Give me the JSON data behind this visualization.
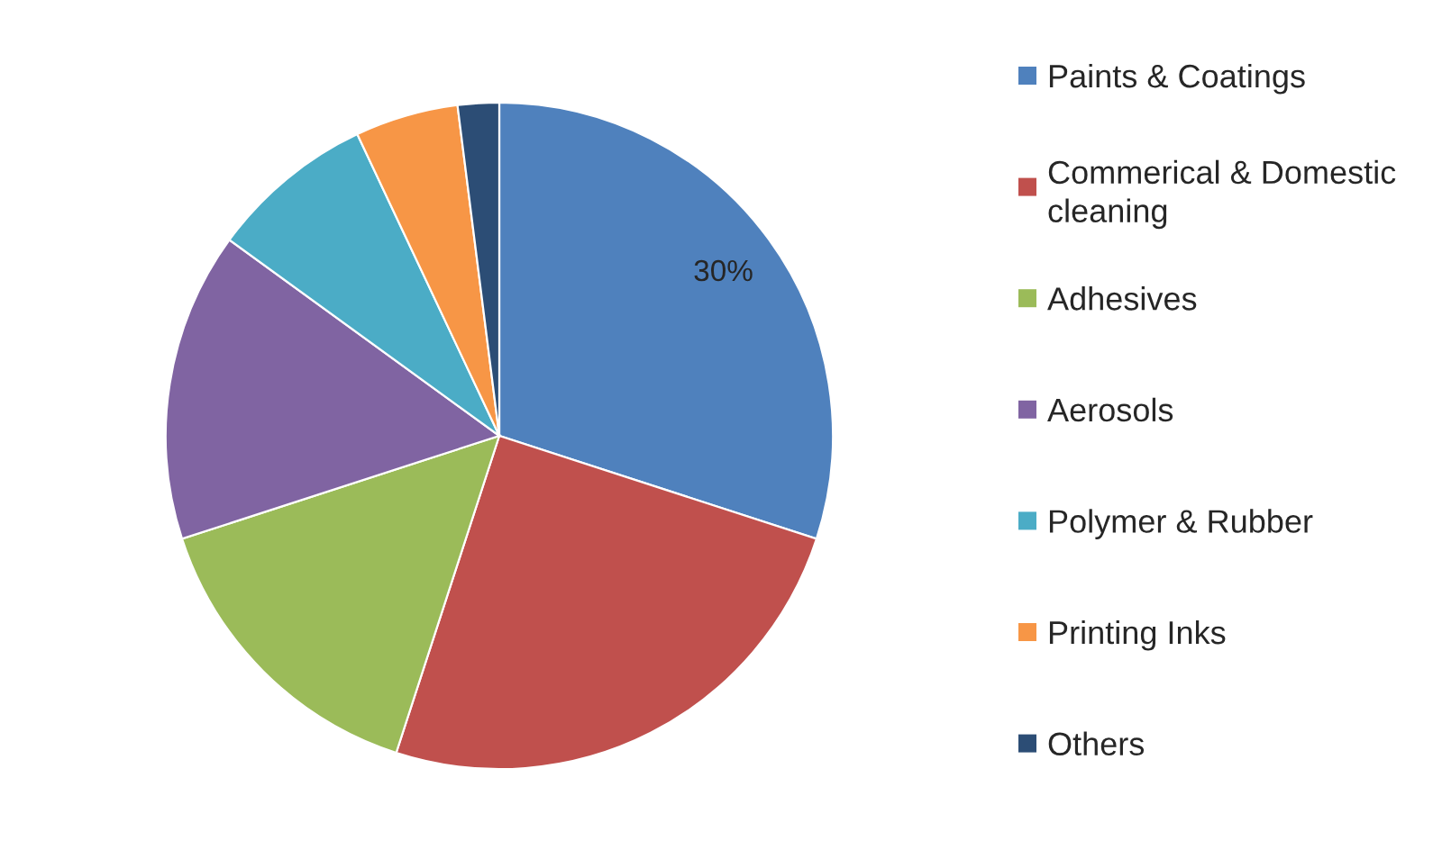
{
  "chart_data": {
    "type": "pie",
    "categories": [
      "Paints & Coatings",
      "Commerical & Domestic cleaning",
      "Adhesives",
      "Aerosols",
      "Polymer & Rubber",
      "Printing Inks",
      "Others"
    ],
    "values": [
      30,
      25,
      15,
      15,
      8,
      5,
      2
    ],
    "colors": [
      "#4f81bd",
      "#c0504d",
      "#9bbb59",
      "#8064a2",
      "#4bacc6",
      "#f79646",
      "#2c4d75"
    ],
    "value_labels": [
      "30%",
      null,
      null,
      null,
      null,
      null,
      null
    ],
    "legend": "right"
  }
}
